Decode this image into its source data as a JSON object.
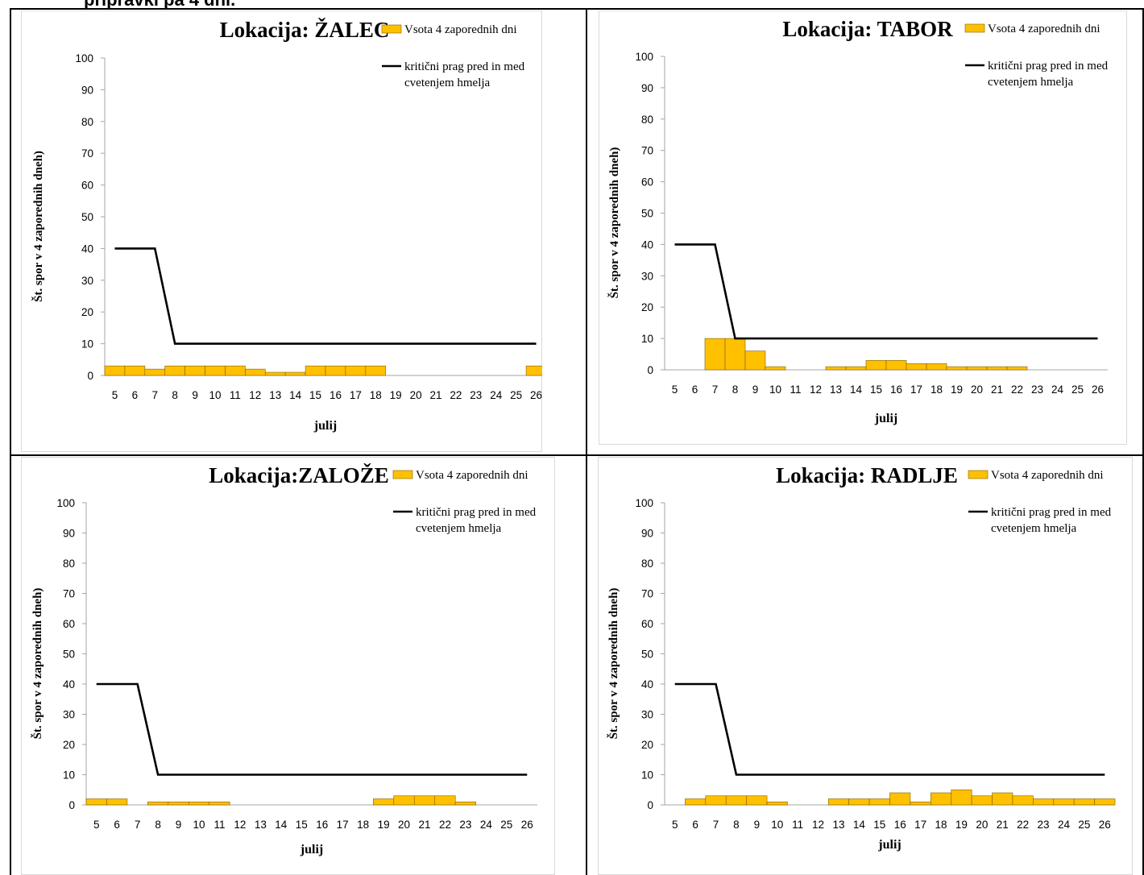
{
  "header": {
    "text": "pripravki pa 4 dni."
  },
  "colors": {
    "bar_fill": "#FFC000",
    "bar_stroke": "#7F6000",
    "threshold_line": "#000000",
    "axis": "#a6a6a6"
  },
  "chart_data": [
    {
      "type": "bar",
      "title": "Lokacija: ŽALEC",
      "xlabel": "julij",
      "ylabel": "Št. spor v 4 zaporednih dneh)",
      "ylim": [
        0,
        100
      ],
      "yticks": [
        0,
        10,
        20,
        30,
        40,
        50,
        60,
        70,
        80,
        90,
        100
      ],
      "categories": [
        "5",
        "6",
        "7",
        "8",
        "9",
        "10",
        "11",
        "12",
        "13",
        "14",
        "15",
        "16",
        "17",
        "18",
        "19",
        "20",
        "21",
        "22",
        "23",
        "24",
        "25",
        "26"
      ],
      "legend_position": "top-right",
      "series": [
        {
          "name": "Vsota 4 zaporednih dni",
          "kind": "bar",
          "values": [
            3,
            3,
            2,
            3,
            3,
            3,
            3,
            2,
            1,
            1,
            3,
            3,
            3,
            3,
            0,
            0,
            0,
            0,
            0,
            0,
            0,
            3
          ]
        },
        {
          "name": "kritični prag pred in med cvetenjem hmelja",
          "kind": "line",
          "values": [
            40,
            40,
            40,
            10,
            10,
            10,
            10,
            10,
            10,
            10,
            10,
            10,
            10,
            10,
            10,
            10,
            10,
            10,
            10,
            10,
            10,
            10
          ]
        }
      ]
    },
    {
      "type": "bar",
      "title": "Lokacija: TABOR",
      "xlabel": "julij",
      "ylabel": "Št. spor v 4 zaporednih dneh)",
      "ylim": [
        0,
        100
      ],
      "yticks": [
        0,
        10,
        20,
        30,
        40,
        50,
        60,
        70,
        80,
        90,
        100
      ],
      "categories": [
        "5",
        "6",
        "7",
        "8",
        "9",
        "10",
        "11",
        "12",
        "13",
        "14",
        "15",
        "16",
        "17",
        "18",
        "19",
        "20",
        "21",
        "22",
        "23",
        "24",
        "25",
        "26"
      ],
      "legend_position": "top-right",
      "series": [
        {
          "name": "Vsota 4 zaporednih dni",
          "kind": "bar",
          "values": [
            0,
            0,
            10,
            10,
            6,
            1,
            0,
            0,
            1,
            1,
            3,
            3,
            2,
            2,
            1,
            1,
            1,
            1,
            0,
            0,
            0,
            0
          ]
        },
        {
          "name": "kritični prag pred in med cvetenjem hmelja",
          "kind": "line",
          "values": [
            40,
            40,
            40,
            10,
            10,
            10,
            10,
            10,
            10,
            10,
            10,
            10,
            10,
            10,
            10,
            10,
            10,
            10,
            10,
            10,
            10,
            10
          ]
        }
      ]
    },
    {
      "type": "bar",
      "title": "Lokacija:ZALOŽE",
      "xlabel": "julij",
      "ylabel": "Št. spor v 4 zaporednih dneh)",
      "ylim": [
        0,
        100
      ],
      "yticks": [
        0,
        10,
        20,
        30,
        40,
        50,
        60,
        70,
        80,
        90,
        100
      ],
      "categories": [
        "5",
        "6",
        "7",
        "8",
        "9",
        "10",
        "11",
        "12",
        "13",
        "14",
        "15",
        "16",
        "17",
        "18",
        "19",
        "20",
        "21",
        "22",
        "23",
        "24",
        "25",
        "26"
      ],
      "legend_position": "top-right",
      "series": [
        {
          "name": "Vsota 4 zaporednih dni",
          "kind": "bar",
          "values": [
            2,
            2,
            0,
            1,
            1,
            1,
            1,
            0,
            0,
            0,
            0,
            0,
            0,
            0,
            2,
            3,
            3,
            3,
            1,
            0,
            0,
            0
          ]
        },
        {
          "name": "kritični prag pred in med cvetenjem hmelja",
          "kind": "line",
          "values": [
            40,
            40,
            40,
            10,
            10,
            10,
            10,
            10,
            10,
            10,
            10,
            10,
            10,
            10,
            10,
            10,
            10,
            10,
            10,
            10,
            10,
            10
          ]
        }
      ]
    },
    {
      "type": "bar",
      "title": "Lokacija: RADLJE",
      "xlabel": "julij",
      "ylabel": "Št. spor v 4 zaporednih dneh)",
      "ylim": [
        0,
        100
      ],
      "yticks": [
        0,
        10,
        20,
        30,
        40,
        50,
        60,
        70,
        80,
        90,
        100
      ],
      "categories": [
        "5",
        "6",
        "7",
        "8",
        "9",
        "10",
        "11",
        "12",
        "13",
        "14",
        "15",
        "16",
        "17",
        "18",
        "19",
        "20",
        "21",
        "22",
        "23",
        "24",
        "25",
        "26"
      ],
      "legend_position": "top-right",
      "series": [
        {
          "name": "Vsota 4 zaporednih dni",
          "kind": "bar",
          "values": [
            0,
            2,
            3,
            3,
            3,
            1,
            0,
            0,
            2,
            2,
            2,
            4,
            1,
            4,
            5,
            3,
            4,
            3,
            2,
            2,
            2,
            2
          ]
        },
        {
          "name": "kritični prag pred in med cvetenjem hmelja",
          "kind": "line",
          "values": [
            40,
            40,
            40,
            10,
            10,
            10,
            10,
            10,
            10,
            10,
            10,
            10,
            10,
            10,
            10,
            10,
            10,
            10,
            10,
            10,
            10,
            10
          ]
        }
      ]
    }
  ]
}
